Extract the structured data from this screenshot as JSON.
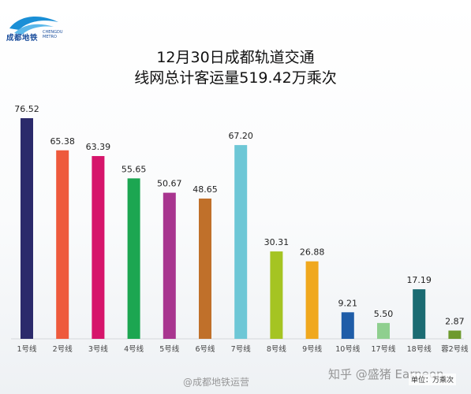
{
  "header": {
    "brand": "成都地铁",
    "brand_sub_1": "CHENGDU",
    "brand_sub_2": "METRO",
    "logo_icon": "wave-logo-icon",
    "brand_color": "#1a8fd6"
  },
  "chart_data": {
    "type": "bar",
    "title_line1": "12月30日成都轨道交通",
    "title_line2": "线网总计客运量519.42万乘次",
    "categories": [
      "1号线",
      "2号线",
      "3号线",
      "4号线",
      "5号线",
      "6号线",
      "7号线",
      "8号线",
      "9号线",
      "10号线",
      "17号线",
      "18号线",
      "蓉2号线"
    ],
    "values": [
      76.52,
      65.38,
      63.39,
      55.65,
      50.67,
      48.65,
      67.2,
      30.31,
      26.88,
      9.21,
      5.5,
      17.19,
      2.87
    ],
    "labels": [
      "76.52",
      "65.38",
      "63.39",
      "55.65",
      "50.67",
      "48.65",
      "67.20",
      "30.31",
      "26.88",
      "9.21",
      "5.50",
      "17.19",
      "2.87"
    ],
    "colors": [
      "#2b2a6b",
      "#ee5a3c",
      "#d6156b",
      "#1ca651",
      "#a8358f",
      "#c0702a",
      "#6dc7d6",
      "#a5c422",
      "#f0a81e",
      "#1f5da8",
      "#8fcf8f",
      "#1b6b72",
      "#6e9a2e"
    ],
    "unit_label": "单位：万乘次",
    "ylim": [
      0,
      80
    ],
    "grid": false
  },
  "watermarks": {
    "weibo": "@成都地铁运营",
    "zhihu": "知乎 @盛猪 Earneon"
  }
}
